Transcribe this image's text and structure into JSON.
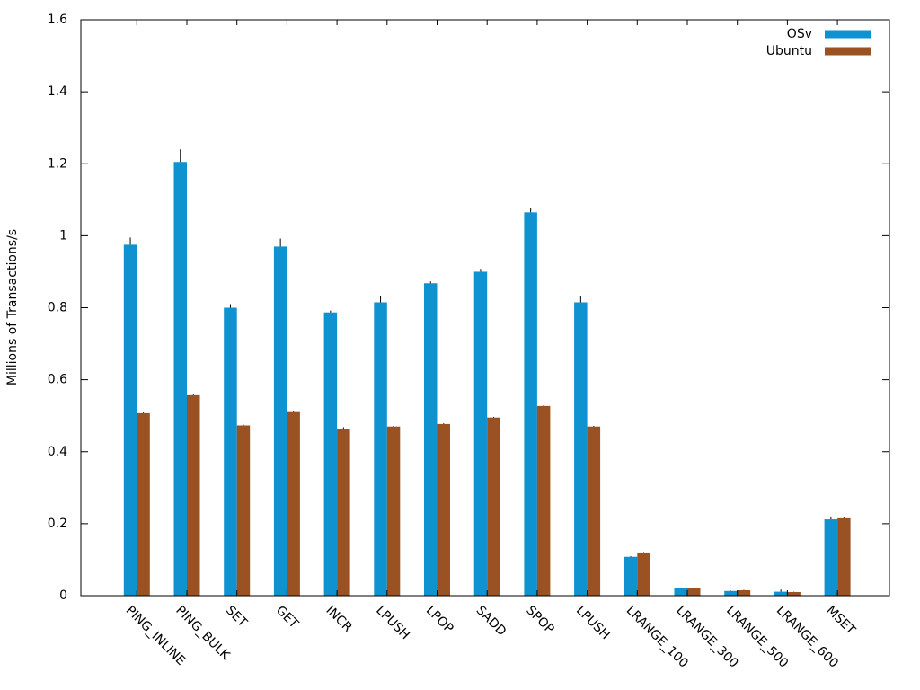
{
  "chart_data": {
    "type": "bar",
    "title": "",
    "xlabel": "",
    "ylabel": "Millions of Transactions/s",
    "ylim": [
      0,
      1.6
    ],
    "yticks": [
      "0",
      "0.2",
      "0.4",
      "0.6",
      "0.8",
      "1",
      "1.2",
      "1.4",
      "1.6"
    ],
    "ytick_values": [
      0,
      0.2,
      0.4,
      0.6,
      0.8,
      1.0,
      1.2,
      1.4,
      1.6
    ],
    "categories": [
      "PING_INLINE",
      "PING_BULK",
      "SET",
      "GET",
      "INCR",
      "LPUSH",
      "LPOP",
      "SADD",
      "SPOP",
      "LPUSH",
      "LRANGE_100",
      "LRANGE_300",
      "LRANGE_500",
      "LRANGE_600",
      "MSET"
    ],
    "series": [
      {
        "name": "OSv",
        "color": "#0f92d0",
        "values": [
          0.975,
          1.205,
          0.8,
          0.97,
          0.787,
          0.815,
          0.868,
          0.9,
          1.065,
          0.815,
          0.108,
          0.02,
          0.013,
          0.011,
          0.212
        ],
        "error": [
          0.02,
          0.035,
          0.01,
          0.022,
          0.005,
          0.018,
          0.005,
          0.008,
          0.012,
          0.018,
          0.002,
          0.001,
          0.001,
          0.006,
          0.008
        ]
      },
      {
        "name": "Ubuntu",
        "color": "#9a5223",
        "values": [
          0.507,
          0.557,
          0.473,
          0.51,
          0.463,
          0.47,
          0.477,
          0.495,
          0.527,
          0.47,
          0.12,
          0.022,
          0.015,
          0.01,
          0.215
        ],
        "error": [
          0.002,
          0.002,
          0.002,
          0.002,
          0.005,
          0.002,
          0.002,
          0.002,
          0.002,
          0.002,
          0.001,
          0.001,
          0.001,
          0.001,
          0.002
        ]
      }
    ],
    "legend_position": "top-right",
    "grid": false
  }
}
